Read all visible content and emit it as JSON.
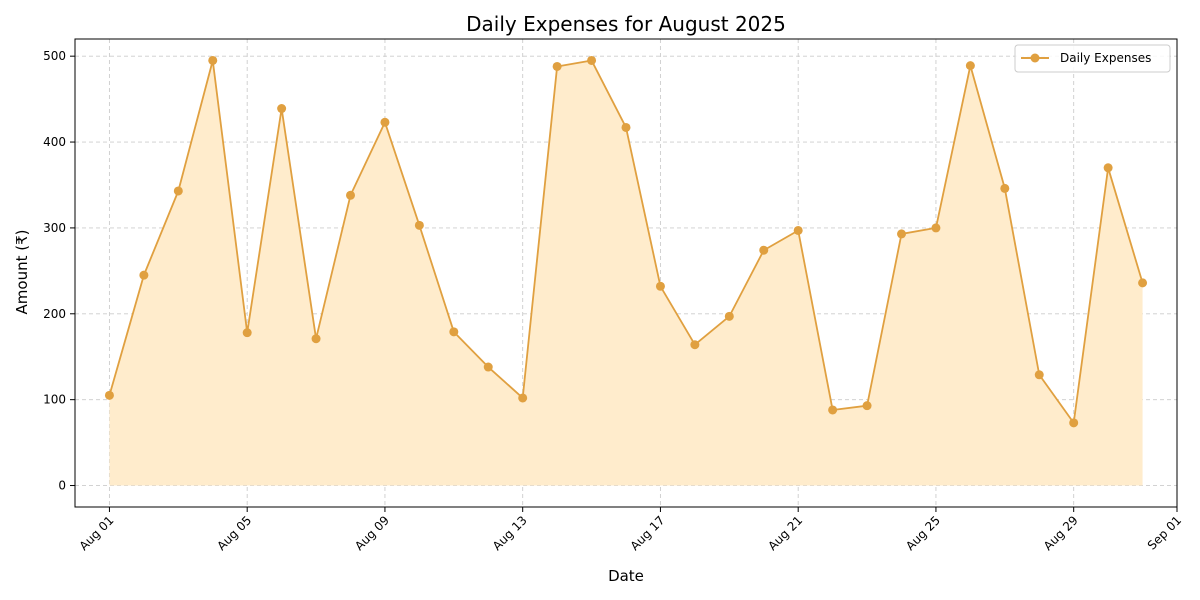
{
  "chart_data": {
    "type": "area",
    "title": "Daily Expenses for August 2025",
    "xlabel": "Date",
    "ylabel": "Amount (₹)",
    "ylim": [
      -25,
      520
    ],
    "xlim": [
      "2025-07-31",
      "2025-09-01"
    ],
    "grid": true,
    "legend_position": "top-right",
    "x_ticks": [
      {
        "date": "2025-08-01",
        "label": "Aug 01"
      },
      {
        "date": "2025-08-05",
        "label": "Aug 05"
      },
      {
        "date": "2025-08-09",
        "label": "Aug 09"
      },
      {
        "date": "2025-08-13",
        "label": "Aug 13"
      },
      {
        "date": "2025-08-17",
        "label": "Aug 17"
      },
      {
        "date": "2025-08-21",
        "label": "Aug 21"
      },
      {
        "date": "2025-08-25",
        "label": "Aug 25"
      },
      {
        "date": "2025-08-29",
        "label": "Aug 29"
      },
      {
        "date": "2025-09-01",
        "label": "Sep 01"
      }
    ],
    "y_ticks": [
      0,
      100,
      200,
      300,
      400,
      500
    ],
    "series": [
      {
        "name": "Daily Expenses",
        "color": "#e0a040",
        "fill_color": "#ffeccc",
        "x": [
          "2025-08-01",
          "2025-08-02",
          "2025-08-03",
          "2025-08-04",
          "2025-08-05",
          "2025-08-06",
          "2025-08-07",
          "2025-08-08",
          "2025-08-09",
          "2025-08-10",
          "2025-08-11",
          "2025-08-12",
          "2025-08-13",
          "2025-08-14",
          "2025-08-15",
          "2025-08-16",
          "2025-08-17",
          "2025-08-18",
          "2025-08-19",
          "2025-08-20",
          "2025-08-21",
          "2025-08-22",
          "2025-08-23",
          "2025-08-24",
          "2025-08-25",
          "2025-08-26",
          "2025-08-27",
          "2025-08-28",
          "2025-08-29",
          "2025-08-30",
          "2025-08-31"
        ],
        "values": [
          105,
          245,
          343,
          495,
          178,
          439,
          171,
          338,
          423,
          303,
          179,
          138,
          102,
          488,
          495,
          417,
          232,
          164,
          197,
          274,
          297,
          88,
          93,
          293,
          300,
          489,
          346,
          129,
          73,
          370,
          236
        ]
      }
    ]
  }
}
